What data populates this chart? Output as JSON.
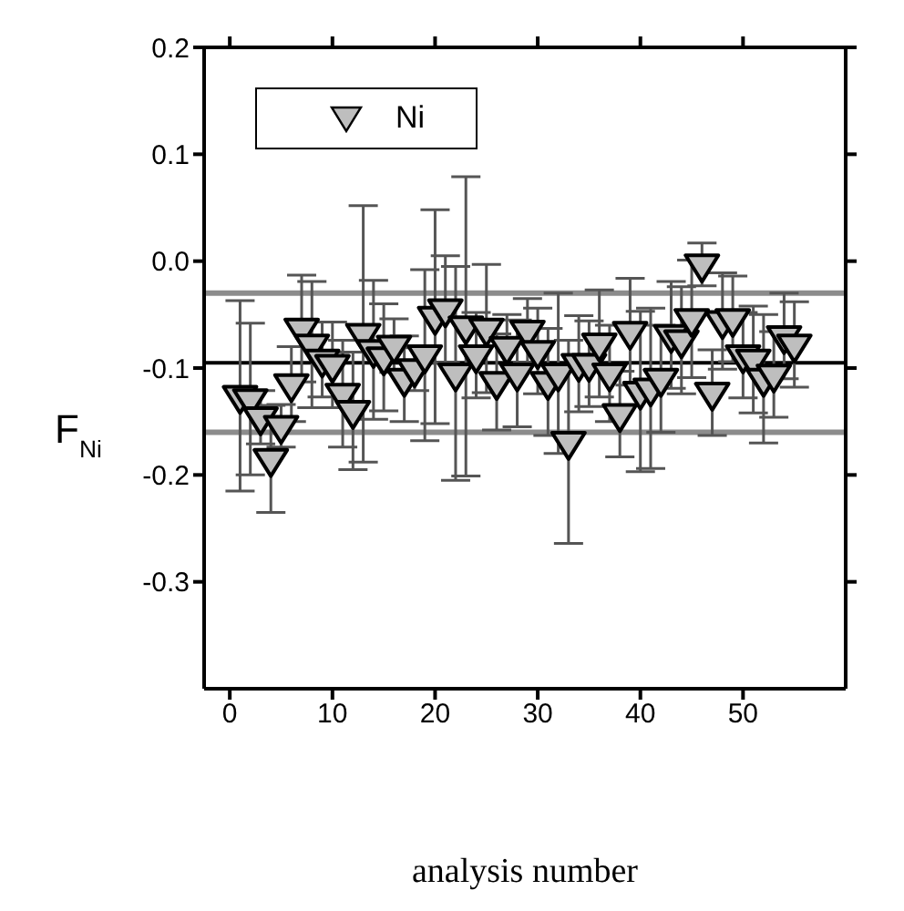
{
  "chart_data": {
    "type": "scatter",
    "xlabel": "analysis number",
    "ylabel": "F$_{Ni}$",
    "xlim": [
      -2.5,
      60
    ],
    "xticks": [
      0,
      10,
      20,
      30,
      40,
      50
    ],
    "ylim": [
      -0.4,
      0.2
    ],
    "yticks": [
      {
        "value": -0.3,
        "label": "-0.3"
      },
      {
        "value": -0.2,
        "label": "-0.2"
      },
      {
        "value": -0.1,
        "label": "-0.1"
      },
      {
        "value": 0,
        "label": "0.0"
      },
      {
        "value": 0.1,
        "label": "0.1"
      },
      {
        "value": 0.2,
        "label": "0.2"
      }
    ],
    "marker": "triangle",
    "legend": "top left",
    "ref_lines": [
      {
        "axis": "y",
        "value": -0.03,
        "color": "#8c8c8c"
      },
      {
        "axis": "y",
        "value": -0.095,
        "color": "#000000"
      },
      {
        "axis": "y",
        "value": -0.16,
        "color": "#8c8c8c"
      }
    ],
    "series": [
      {
        "name": "Ni",
        "color": "#bebebe",
        "x": [
          1,
          2,
          3,
          4,
          5,
          6,
          7,
          8,
          9,
          10,
          11,
          12,
          13,
          14,
          15,
          16,
          17,
          18,
          19,
          20,
          21,
          22,
          23,
          24,
          25,
          26,
          27,
          28,
          29,
          30,
          31,
          32,
          33,
          34,
          35,
          36,
          37,
          38,
          39,
          40,
          41,
          42,
          43,
          44,
          45,
          46,
          47,
          48,
          49,
          50,
          51,
          52,
          53,
          54,
          55
        ],
        "values": [
          -0.126,
          -0.129,
          -0.146,
          -0.185,
          -0.154,
          -0.115,
          -0.063,
          -0.078,
          -0.092,
          -0.097,
          -0.124,
          -0.14,
          -0.068,
          -0.083,
          -0.09,
          -0.079,
          -0.11,
          -0.101,
          -0.088,
          -0.052,
          -0.045,
          -0.105,
          -0.061,
          -0.088,
          -0.063,
          -0.113,
          -0.08,
          -0.105,
          -0.065,
          -0.084,
          -0.113,
          -0.105,
          -0.169,
          -0.096,
          -0.096,
          -0.077,
          -0.105,
          -0.143,
          -0.066,
          -0.122,
          -0.119,
          -0.11,
          -0.069,
          -0.074,
          -0.054,
          -0.003,
          -0.123,
          -0.056,
          -0.054,
          -0.088,
          -0.092,
          -0.11,
          -0.106,
          -0.07,
          -0.078
        ],
        "errors": [
          0.089,
          0.071,
          0.025,
          0.05,
          0.02,
          0.035,
          0.05,
          0.059,
          0.035,
          0.04,
          0.05,
          0.055,
          0.12,
          0.065,
          0.05,
          0.025,
          0.04,
          0.02,
          0.08,
          0.1,
          0.05,
          0.1,
          0.14,
          0.04,
          0.06,
          0.045,
          0.03,
          0.05,
          0.03,
          0.04,
          0.05,
          0.075,
          0.095,
          0.045,
          0.04,
          0.05,
          0.045,
          0.04,
          0.05,
          0.075,
          0.075,
          0.05,
          0.05,
          0.05,
          0.055,
          0.02,
          0.04,
          0.045,
          0.04,
          0.04,
          0.05,
          0.06,
          0.04,
          0.04,
          0.04
        ]
      }
    ]
  }
}
